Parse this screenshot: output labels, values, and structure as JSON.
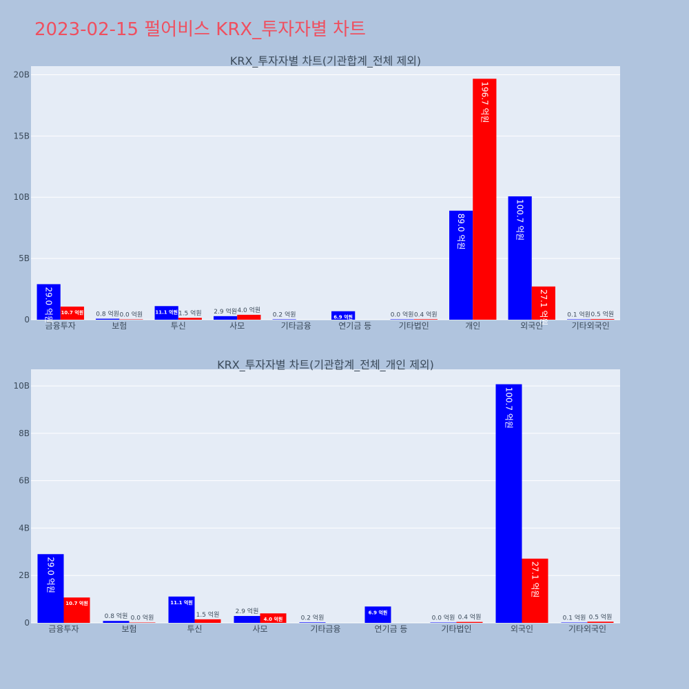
{
  "title": "2023-02-15 펄어비스 KRX_투자자별 차트",
  "colors": {
    "background": "#b0c4de",
    "plot_bg": "#e5ecf6",
    "title": "#ef4f5f",
    "series_a": "#0000ff",
    "series_b": "#ff0000"
  },
  "chart_data": [
    {
      "type": "bar",
      "title": "KRX_투자자별 차트(기관합계_전체 제외)",
      "categories": [
        "금융투자",
        "보험",
        "투신",
        "사모",
        "기타금융",
        "연기금 등",
        "기타법인",
        "개인",
        "외국인",
        "기타외국인"
      ],
      "series": [
        {
          "values": [
            2900000000,
            80000000,
            1110000000,
            290000000,
            20000000,
            690000000,
            0,
            8900000000,
            10070000000,
            10000000
          ],
          "labels": [
            "29.0 억원",
            "0.8 억원",
            "11.1 억원",
            "2.9 억원",
            "0.2 억원",
            "6.9 억원",
            "0.0 억원",
            "89.0 억원",
            "100.7 억원",
            "0.1 억원"
          ]
        },
        {
          "values": [
            1070000000,
            0,
            150000000,
            400000000,
            null,
            null,
            40000000,
            19670000000,
            2710000000,
            50000000
          ],
          "labels": [
            "10.7 억원",
            "0.0 억원",
            "1.5 억원",
            "4.0 억원",
            "",
            "",
            "0.4 억원",
            "196.7 억원",
            "27.1 억원",
            "0.5 억원"
          ]
        }
      ],
      "yticks": [
        0,
        5000000000,
        10000000000,
        15000000000,
        20000000000
      ],
      "ytick_labels": [
        "0",
        "5B",
        "10B",
        "15B",
        "20B"
      ],
      "ylim": [
        0,
        20700000000
      ],
      "grid": true,
      "legend": "none"
    },
    {
      "type": "bar",
      "title": "KRX_투자자별 차트(기관합계_전체_개인 제외)",
      "categories": [
        "금융투자",
        "보험",
        "투신",
        "사모",
        "기타금융",
        "연기금 등",
        "기타법인",
        "외국인",
        "기타외국인"
      ],
      "series": [
        {
          "values": [
            2900000000,
            80000000,
            1110000000,
            290000000,
            20000000,
            690000000,
            0,
            10070000000,
            10000000
          ],
          "labels": [
            "29.0 억원",
            "0.8 억원",
            "11.1 억원",
            "2.9 억원",
            "0.2 억원",
            "6.9 억원",
            "0.0 억원",
            "100.7 억원",
            "0.1 억원"
          ]
        },
        {
          "values": [
            1070000000,
            0,
            150000000,
            400000000,
            null,
            null,
            40000000,
            2710000000,
            50000000
          ],
          "labels": [
            "10.7 억원",
            "0.0 억원",
            "1.5 억원",
            "4.0 억원",
            "",
            "",
            "0.4 억원",
            "27.1 억원",
            "0.5 억원"
          ]
        }
      ],
      "yticks": [
        0,
        2000000000,
        4000000000,
        6000000000,
        8000000000,
        10000000000
      ],
      "ytick_labels": [
        "0",
        "2B",
        "4B",
        "6B",
        "8B",
        "10B"
      ],
      "ylim": [
        0,
        10700000000
      ],
      "grid": true,
      "legend": "none"
    }
  ]
}
